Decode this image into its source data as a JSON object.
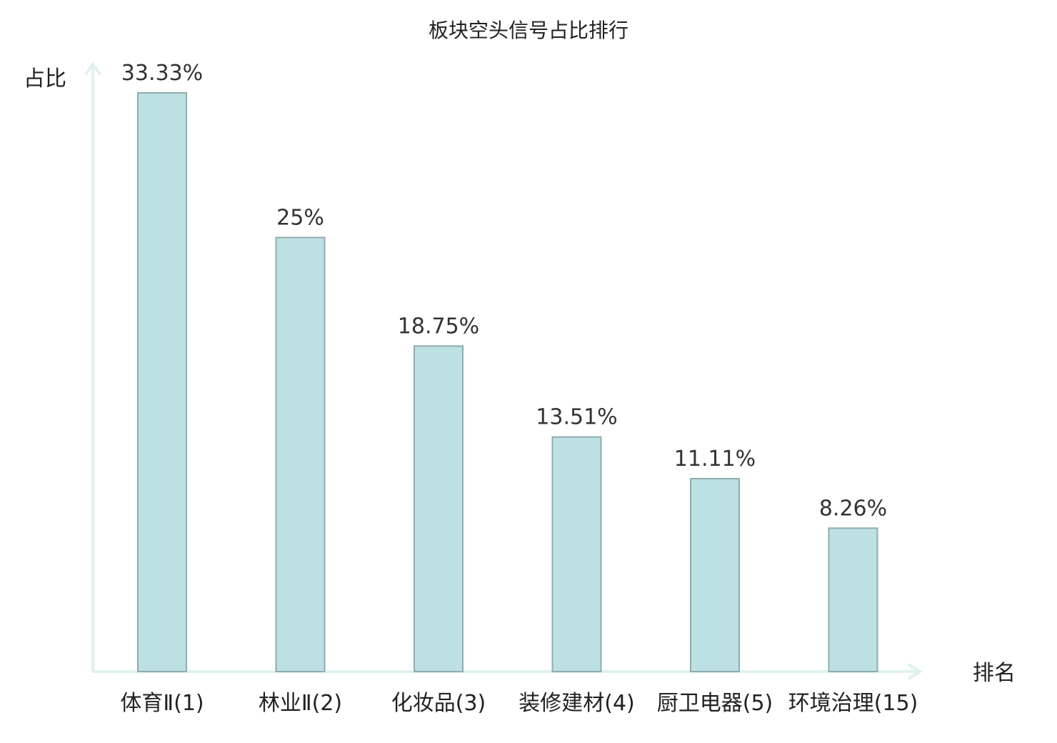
{
  "chart_data": {
    "type": "bar",
    "title": "板块空头信号占比排行",
    "ylabel": "占比",
    "xlabel": "排名",
    "ylim": [
      0,
      35
    ],
    "grid": false,
    "categories": [
      "体育Ⅱ(1)",
      "林业Ⅱ(2)",
      "化妆品(3)",
      "装修建材(4)",
      "厨卫电器(5)",
      "环境治理(15)"
    ],
    "values": [
      33.33,
      25,
      18.75,
      13.51,
      11.11,
      8.26
    ],
    "value_labels": [
      "33.33%",
      "25%",
      "18.75%",
      "13.51%",
      "11.11%",
      "8.26%"
    ],
    "highlight_index": 5,
    "colors": {
      "bar_fill": "#bde0e3",
      "bar_stroke": "#8fadaf",
      "axis": "#dff1ef",
      "text": "#222222",
      "highlight_text": "#e02020"
    }
  }
}
